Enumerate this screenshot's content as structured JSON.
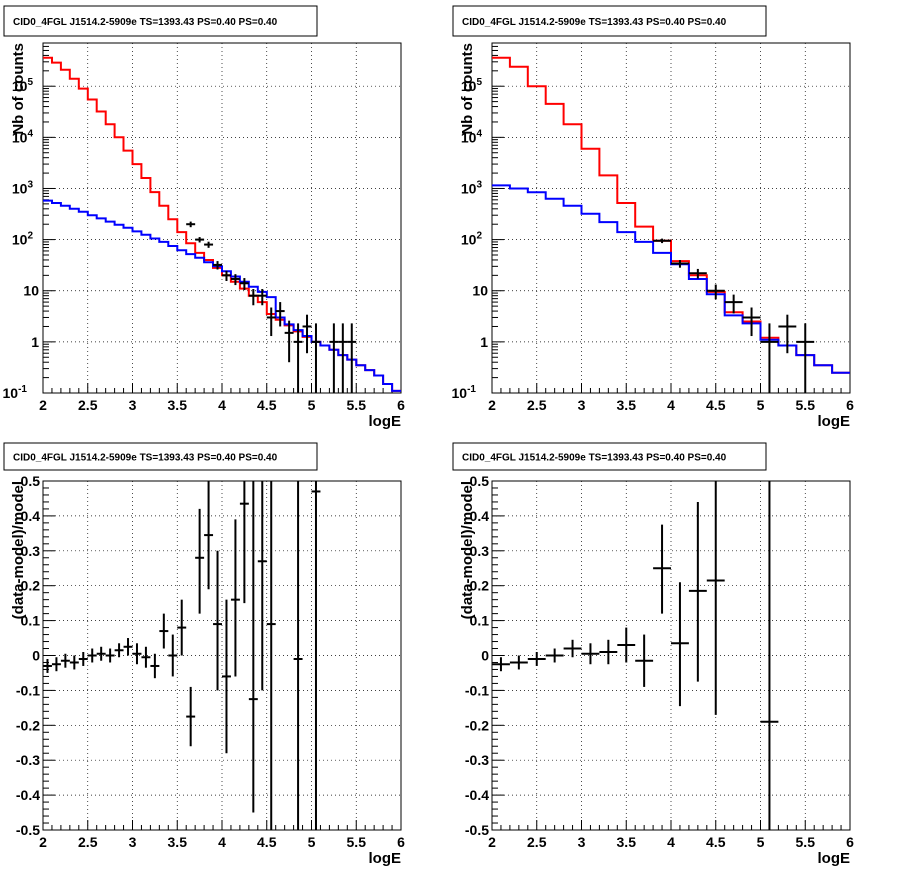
{
  "chart_data": [
    {
      "type": "line",
      "title": "CID0_4FGL J1514.2-5909e TS=1393.43 PS=0.40 PS=0.40",
      "xlabel": "logE",
      "ylabel": "Nb of counts",
      "xlim": [
        2,
        6
      ],
      "ylim": [
        0.1,
        700000
      ],
      "yscale": "log",
      "grid": true,
      "xticks": [
        "2",
        "2.5",
        "3",
        "3.5",
        "4",
        "4.5",
        "5",
        "5.5",
        "6"
      ],
      "yticks": [
        "10^-1",
        "1",
        "10",
        "10^2",
        "10^3",
        "10^4",
        "10^5"
      ],
      "bin_edges": [
        2.0,
        2.1,
        2.2,
        2.3,
        2.4,
        2.5,
        2.6,
        2.7,
        2.8,
        2.9,
        3.0,
        3.1,
        3.2,
        3.3,
        3.4,
        3.5,
        3.6,
        3.7,
        3.8,
        3.9,
        4.0,
        4.1,
        4.2,
        4.3,
        4.4,
        4.5,
        4.6,
        4.7,
        4.8,
        4.9,
        5.0,
        5.1,
        5.2,
        5.3,
        5.4,
        5.5,
        5.6,
        5.7,
        5.8,
        5.9,
        6.0
      ],
      "series": [
        {
          "kind": "step",
          "color": "#ff0000",
          "values": [
            360000,
            290000,
            210000,
            140000,
            90000,
            55000,
            32000,
            18000,
            10000,
            5500,
            3000,
            1600,
            850,
            460,
            250,
            140,
            85,
            55,
            40,
            28,
            20,
            15,
            11,
            8,
            6,
            3.5,
            2.7,
            2.1,
            1.6,
            1.25,
            1.0,
            0.85,
            0.7,
            0.55,
            0.45,
            0.35,
            0.28,
            0.22,
            0.15,
            0.11
          ]
        },
        {
          "kind": "step",
          "color": "#0000ff",
          "values": [
            580,
            520,
            460,
            400,
            350,
            300,
            260,
            225,
            195,
            170,
            145,
            125,
            105,
            90,
            75,
            62,
            52,
            44,
            36,
            30,
            24,
            19,
            15,
            12,
            9.5,
            7.5,
            3,
            2.2,
            1.7,
            1.3,
            1.0,
            0.85,
            0.7,
            0.55,
            0.45,
            0.35,
            0.28,
            0.22,
            0.15,
            0.11
          ]
        },
        {
          "kind": "points",
          "color": "#000000",
          "x": [
            3.65,
            3.75,
            3.85,
            3.95,
            4.05,
            4.15,
            4.25,
            4.35,
            4.45,
            4.55,
            4.65,
            4.75,
            4.85,
            4.95,
            5.05,
            5.25,
            5.35,
            5.45
          ],
          "values": [
            200,
            100,
            80,
            32,
            20,
            17,
            14,
            8,
            8,
            3,
            4,
            1.5,
            1,
            2,
            1,
            1,
            1,
            1
          ],
          "y_low": [
            175,
            88,
            69,
            26,
            15.5,
            12.9,
            10.3,
            5.2,
            5.2,
            1.3,
            2,
            0.4,
            0.1,
            0.6,
            0.1,
            0.1,
            0.1,
            0.1
          ],
          "y_high": [
            225,
            112,
            91,
            38,
            24.5,
            21.1,
            17.7,
            10.8,
            10.8,
            4.7,
            6,
            2.6,
            2.3,
            3.4,
            2.3,
            2.3,
            2.3,
            2.3
          ]
        }
      ]
    },
    {
      "type": "line",
      "title": "CID0_4FGL J1514.2-5909e TS=1393.43 PS=0.40 PS=0.40",
      "xlabel": "logE",
      "ylabel": "Nb of counts",
      "xlim": [
        2,
        6
      ],
      "ylim": [
        0.1,
        700000
      ],
      "yscale": "log",
      "grid": true,
      "xticks": [
        "2",
        "2.5",
        "3",
        "3.5",
        "4",
        "4.5",
        "5",
        "5.5",
        "6"
      ],
      "yticks": [
        "10^-1",
        "1",
        "10",
        "10^2",
        "10^3",
        "10^4",
        "10^5"
      ],
      "bin_edges": [
        2.0,
        2.2,
        2.4,
        2.6,
        2.8,
        3.0,
        3.2,
        3.4,
        3.6,
        3.8,
        4.0,
        4.2,
        4.4,
        4.6,
        4.8,
        5.0,
        5.2,
        5.4,
        5.6,
        5.8,
        6.0
      ],
      "series": [
        {
          "kind": "step",
          "color": "#ff0000",
          "values": [
            360000,
            240000,
            100000,
            45000,
            18000,
            6000,
            1800,
            520,
            180,
            95,
            38,
            20,
            9.5,
            3.8,
            2.5,
            1.2,
            0.85,
            0.55,
            0.35,
            0.25
          ]
        },
        {
          "kind": "step",
          "color": "#0000ff",
          "values": [
            1150,
            1000,
            840,
            630,
            460,
            320,
            220,
            140,
            90,
            55,
            33,
            17,
            8.5,
            3.3,
            2.3,
            1.1,
            0.85,
            0.55,
            0.35,
            0.25
          ]
        },
        {
          "kind": "points",
          "color": "#000000",
          "x": [
            3.9,
            4.1,
            4.3,
            4.5,
            4.7,
            4.9,
            5.1,
            5.3,
            5.5
          ],
          "values": [
            95,
            34,
            22,
            10,
            6,
            3,
            1,
            2,
            1
          ],
          "y_low": [
            85.5,
            28.2,
            17.3,
            6.8,
            3.6,
            1.3,
            0.1,
            0.6,
            0.1
          ],
          "y_high": [
            104.5,
            39.8,
            26.7,
            13.2,
            8.4,
            4.7,
            2.3,
            3.4,
            2.3
          ]
        }
      ]
    },
    {
      "type": "scatter",
      "title": "CID0_4FGL J1514.2-5909e TS=1393.43 PS=0.40 PS=0.40",
      "xlabel": "logE",
      "ylabel": "(data-model)/model",
      "xlim": [
        2,
        6
      ],
      "ylim": [
        -0.5,
        0.5
      ],
      "grid": true,
      "xticks": [
        "2",
        "2.5",
        "3",
        "3.5",
        "4",
        "4.5",
        "5",
        "5.5",
        "6"
      ],
      "yticks": [
        "-0.5",
        "-0.4",
        "-0.3",
        "-0.2",
        "-0.1",
        "0",
        "0.1",
        "0.2",
        "0.3",
        "0.4",
        "0.5"
      ],
      "bin_width": 0.1,
      "series": [
        {
          "kind": "points",
          "color": "#000000",
          "x": [
            2.05,
            2.15,
            2.25,
            2.35,
            2.45,
            2.55,
            2.65,
            2.75,
            2.85,
            2.95,
            3.05,
            3.15,
            3.25,
            3.35,
            3.45,
            3.55,
            3.65,
            3.75,
            3.85,
            3.95,
            4.05,
            4.15,
            4.25,
            4.35,
            4.45,
            4.55,
            4.85,
            5.05
          ],
          "values": [
            -0.03,
            -0.025,
            -0.015,
            -0.02,
            -0.01,
            0.0,
            0.005,
            0.0,
            0.015,
            0.025,
            0.005,
            -0.005,
            -0.03,
            0.07,
            0.0,
            0.08,
            -0.175,
            0.28,
            0.345,
            0.09,
            -0.06,
            0.16,
            0.435,
            -0.125,
            0.27,
            0.09,
            -0.01,
            0.47
          ],
          "y_low": [
            -0.05,
            -0.045,
            -0.035,
            -0.04,
            -0.03,
            -0.02,
            -0.015,
            -0.02,
            -0.005,
            0.0,
            -0.025,
            -0.035,
            -0.065,
            0.02,
            -0.06,
            0.0,
            -0.26,
            0.12,
            0.19,
            -0.1,
            -0.28,
            -0.06,
            0.15,
            -0.45,
            -0.1,
            -0.5,
            -0.5,
            -0.5
          ],
          "y_high": [
            -0.01,
            -0.005,
            0.005,
            0.0,
            0.01,
            0.02,
            0.025,
            0.02,
            0.035,
            0.05,
            0.035,
            0.025,
            0.005,
            0.12,
            0.06,
            0.16,
            -0.09,
            0.42,
            0.5,
            0.3,
            0.16,
            0.39,
            0.5,
            0.5,
            0.5,
            0.5,
            0.5,
            0.5
          ]
        }
      ]
    },
    {
      "type": "scatter",
      "title": "CID0_4FGL J1514.2-5909e TS=1393.43 PS=0.40 PS=0.40",
      "xlabel": "logE",
      "ylabel": "(data-model)/model",
      "xlim": [
        2,
        6
      ],
      "ylim": [
        -0.5,
        0.5
      ],
      "grid": true,
      "xticks": [
        "2",
        "2.5",
        "3",
        "3.5",
        "4",
        "4.5",
        "5",
        "5.5",
        "6"
      ],
      "yticks": [
        "-0.5",
        "-0.4",
        "-0.3",
        "-0.2",
        "-0.1",
        "0",
        "0.1",
        "0.2",
        "0.3",
        "0.4",
        "0.5"
      ],
      "bin_width": 0.2,
      "series": [
        {
          "kind": "points",
          "color": "#000000",
          "x": [
            2.1,
            2.3,
            2.5,
            2.7,
            2.9,
            3.1,
            3.3,
            3.5,
            3.7,
            3.9,
            4.1,
            4.3,
            4.5,
            5.1
          ],
          "values": [
            -0.025,
            -0.02,
            -0.01,
            0.0,
            0.02,
            0.005,
            0.01,
            0.03,
            -0.015,
            0.25,
            0.035,
            0.185,
            0.215,
            -0.19
          ],
          "y_low": [
            -0.045,
            -0.04,
            -0.03,
            -0.02,
            -0.005,
            -0.025,
            -0.025,
            -0.02,
            -0.09,
            0.12,
            -0.145,
            -0.075,
            -0.17,
            -0.5
          ],
          "y_high": [
            -0.005,
            0.0,
            0.01,
            0.02,
            0.045,
            0.035,
            0.045,
            0.08,
            0.06,
            0.375,
            0.21,
            0.44,
            0.5,
            0.5
          ]
        }
      ]
    }
  ]
}
